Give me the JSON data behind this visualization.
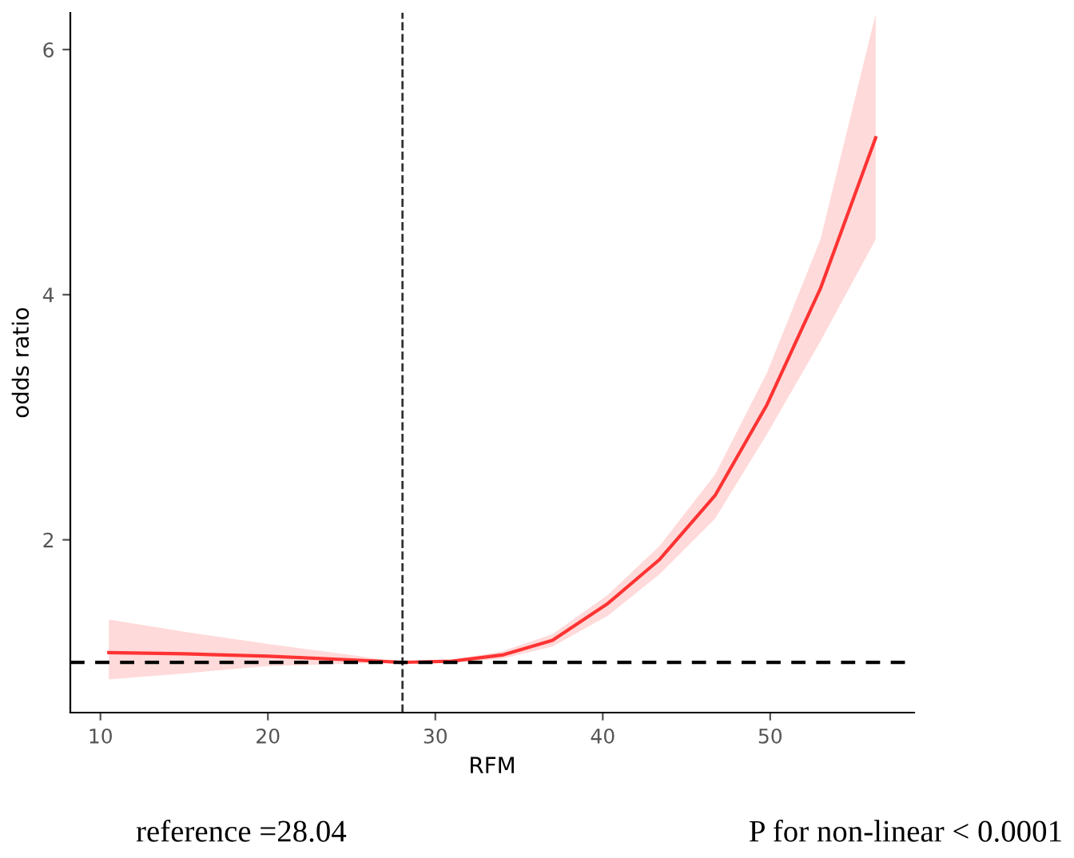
{
  "chart_data": {
    "type": "line",
    "xlabel": "RFM",
    "ylabel": "odds ratio",
    "x": [
      10.5,
      15,
      20,
      25,
      28.04,
      31,
      34,
      37,
      40.3,
      43.4,
      46.7,
      49.8,
      53.0,
      56.3
    ],
    "series": [
      {
        "color": "#ff3333",
        "values": [
          1.08,
          1.07,
          1.05,
          1.02,
          1.0,
          1.01,
          1.06,
          1.18,
          1.48,
          1.84,
          2.36,
          3.1,
          4.05,
          5.28
        ],
        "upper": [
          1.35,
          1.25,
          1.15,
          1.06,
          1.0,
          1.02,
          1.09,
          1.23,
          1.55,
          1.95,
          2.53,
          3.36,
          4.45,
          6.29
        ],
        "lower": [
          0.86,
          0.91,
          0.97,
          0.99,
          1.0,
          1.0,
          1.03,
          1.13,
          1.38,
          1.72,
          2.17,
          2.86,
          3.62,
          4.45
        ]
      }
    ],
    "xlim": [
      8.2,
      58.6
    ],
    "xticks": [
      10,
      20,
      30,
      40,
      50
    ],
    "ylim": [
      0.59,
      6.3
    ],
    "yticks": [
      2,
      4,
      6
    ],
    "ref_lines": [
      {
        "axis": "x",
        "value": 28.04,
        "color": "#333333",
        "line_style": "dashed"
      },
      {
        "axis": "y",
        "value": 1,
        "color": "#000000",
        "line_style": "dashed"
      }
    ],
    "grid": false,
    "annotations": [
      "reference =28.04",
      "P for non-linear < 0.0001"
    ]
  }
}
